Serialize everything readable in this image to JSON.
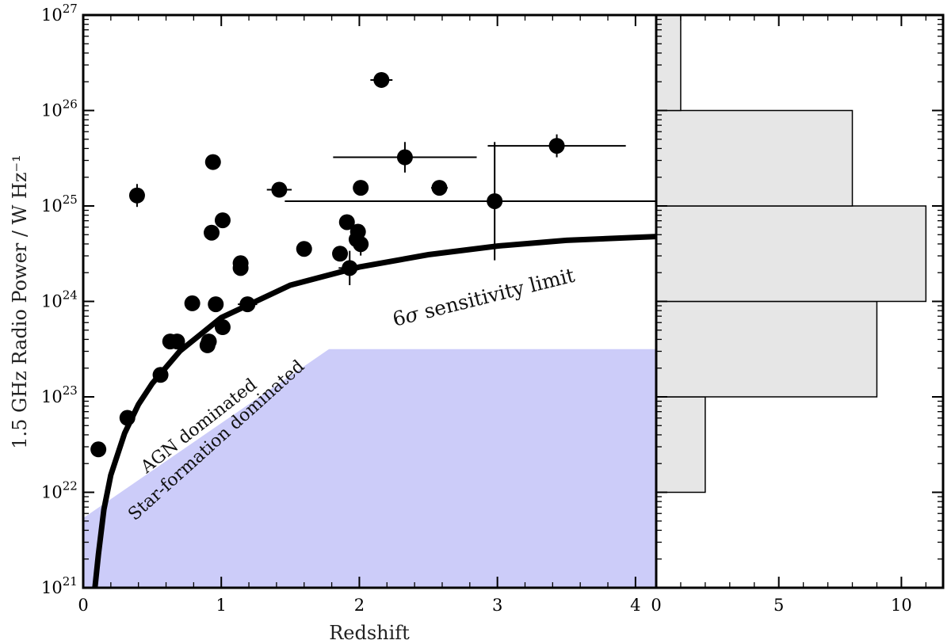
{
  "chart_data": {
    "type": "scatter",
    "xlabel": "Redshift",
    "ylabel": "1.5 GHz Radio Power / W Hz⁻¹",
    "xlim": [
      0,
      4.15
    ],
    "ylim_log10": [
      21,
      27
    ],
    "x_ticks": [
      "0",
      "1",
      "2",
      "3",
      "4"
    ],
    "y_ticks": [
      {
        "base": "10",
        "exp": "21"
      },
      {
        "base": "10",
        "exp": "22"
      },
      {
        "base": "10",
        "exp": "23"
      },
      {
        "base": "10",
        "exp": "24"
      },
      {
        "base": "10",
        "exp": "25"
      },
      {
        "base": "10",
        "exp": "26"
      },
      {
        "base": "10",
        "exp": "27"
      }
    ],
    "points": [
      {
        "z": 0.11,
        "logP": 22.45,
        "zerr": 0.0,
        "logPerr": 0.05
      },
      {
        "z": 0.32,
        "logP": 22.78,
        "zerr": 0.0,
        "logPerr": 0.0
      },
      {
        "z": 0.39,
        "logP": 25.11,
        "zerr": 0.02,
        "logPerr": 0.12
      },
      {
        "z": 0.56,
        "logP": 23.23,
        "zerr": 0.0,
        "logPerr": 0.0
      },
      {
        "z": 0.63,
        "logP": 23.58,
        "zerr": 0.0,
        "logPerr": 0.0
      },
      {
        "z": 0.68,
        "logP": 23.58,
        "zerr": 0.0,
        "logPerr": 0.0
      },
      {
        "z": 0.79,
        "logP": 23.98,
        "zerr": 0.0,
        "logPerr": 0.0
      },
      {
        "z": 0.9,
        "logP": 23.54,
        "zerr": 0.0,
        "logPerr": 0.0
      },
      {
        "z": 0.91,
        "logP": 23.58,
        "zerr": 0.0,
        "logPerr": 0.0
      },
      {
        "z": 0.93,
        "logP": 24.72,
        "zerr": 0.0,
        "logPerr": 0.0
      },
      {
        "z": 0.94,
        "logP": 25.46,
        "zerr": 0.0,
        "logPerr": 0.0
      },
      {
        "z": 0.96,
        "logP": 23.97,
        "zerr": 0.0,
        "logPerr": 0.0
      },
      {
        "z": 1.01,
        "logP": 24.85,
        "zerr": 0.0,
        "logPerr": 0.0
      },
      {
        "z": 1.01,
        "logP": 23.73,
        "zerr": 0.0,
        "logPerr": 0.0
      },
      {
        "z": 1.14,
        "logP": 24.4,
        "zerr": 0.0,
        "logPerr": 0.0
      },
      {
        "z": 1.14,
        "logP": 24.35,
        "zerr": 0.0,
        "logPerr": 0.0
      },
      {
        "z": 1.19,
        "logP": 23.97,
        "zerr": 0.07,
        "logPerr": 0.05
      },
      {
        "z": 1.42,
        "logP": 25.17,
        "zerr": 0.09,
        "logPerr": 0.0
      },
      {
        "z": 1.6,
        "logP": 24.55,
        "zerr": 0.0,
        "logPerr": 0.0
      },
      {
        "z": 1.86,
        "logP": 24.5,
        "zerr": 0.0,
        "logPerr": 0.0
      },
      {
        "z": 1.91,
        "logP": 24.83,
        "zerr": 0.0,
        "logPerr": 0.0
      },
      {
        "z": 1.93,
        "logP": 24.35,
        "zerr": 0.08,
        "logPerr": 0.18
      },
      {
        "z": 1.98,
        "logP": 24.65,
        "zerr": 0.0,
        "logPerr": 0.0
      },
      {
        "z": 1.99,
        "logP": 24.73,
        "zerr": 0.0,
        "logPerr": 0.0
      },
      {
        "z": 2.01,
        "logP": 24.6,
        "zerr": 0.0,
        "logPerr": 0.12
      },
      {
        "z": 2.01,
        "logP": 25.19,
        "zerr": 0.0,
        "logPerr": 0.0
      },
      {
        "z": 2.16,
        "logP": 26.32,
        "zerr": 0.08,
        "logPerr": 0.0
      },
      {
        "z": 2.33,
        "logP": 25.51,
        "zerr": 0.52,
        "logPerr": 0.16
      },
      {
        "z": 2.58,
        "logP": 25.19,
        "zerr": 0.06,
        "logPerr": 0.0
      },
      {
        "z": 2.98,
        "logP": 25.05,
        "zerr": 1.52,
        "logPerr": 0.62
      },
      {
        "z": 3.43,
        "logP": 25.63,
        "zerr": 0.5,
        "logPerr": 0.12
      }
    ],
    "sensitivity_curve": {
      "label": "6σ sensitivity limit",
      "z": [
        0.085,
        0.11,
        0.15,
        0.2,
        0.3,
        0.4,
        0.5,
        0.7,
        1.0,
        1.5,
        2.0,
        2.5,
        3.0,
        3.5,
        4.15
      ],
      "logP": [
        21.0,
        21.35,
        21.82,
        22.18,
        22.62,
        22.92,
        23.14,
        23.48,
        23.83,
        24.17,
        24.36,
        24.49,
        24.58,
        24.64,
        24.68
      ]
    },
    "shaded_region": {
      "label": "Star-formation dominated",
      "color": "#ccccf9",
      "z": [
        0,
        0,
        1.78,
        4.15,
        4.15
      ],
      "logP": [
        21.0,
        21.73,
        23.5,
        23.5,
        21.0
      ]
    },
    "annotations": {
      "agn": "AGN dominated",
      "sf": "Star-formation dominated",
      "limit_prefix": "6",
      "limit_sigma": "σ",
      "limit_suffix": " sensitivity limit"
    },
    "histogram": {
      "x_ticks": [
        "0",
        "5",
        "10"
      ],
      "xlim": [
        0,
        11.7
      ],
      "bins_log10": [
        [
          22,
          23
        ],
        [
          23,
          24
        ],
        [
          24,
          25
        ],
        [
          25,
          26
        ],
        [
          26,
          27
        ]
      ],
      "counts": [
        2,
        9,
        11,
        8,
        1
      ],
      "fill": "#e6e6e6"
    }
  }
}
